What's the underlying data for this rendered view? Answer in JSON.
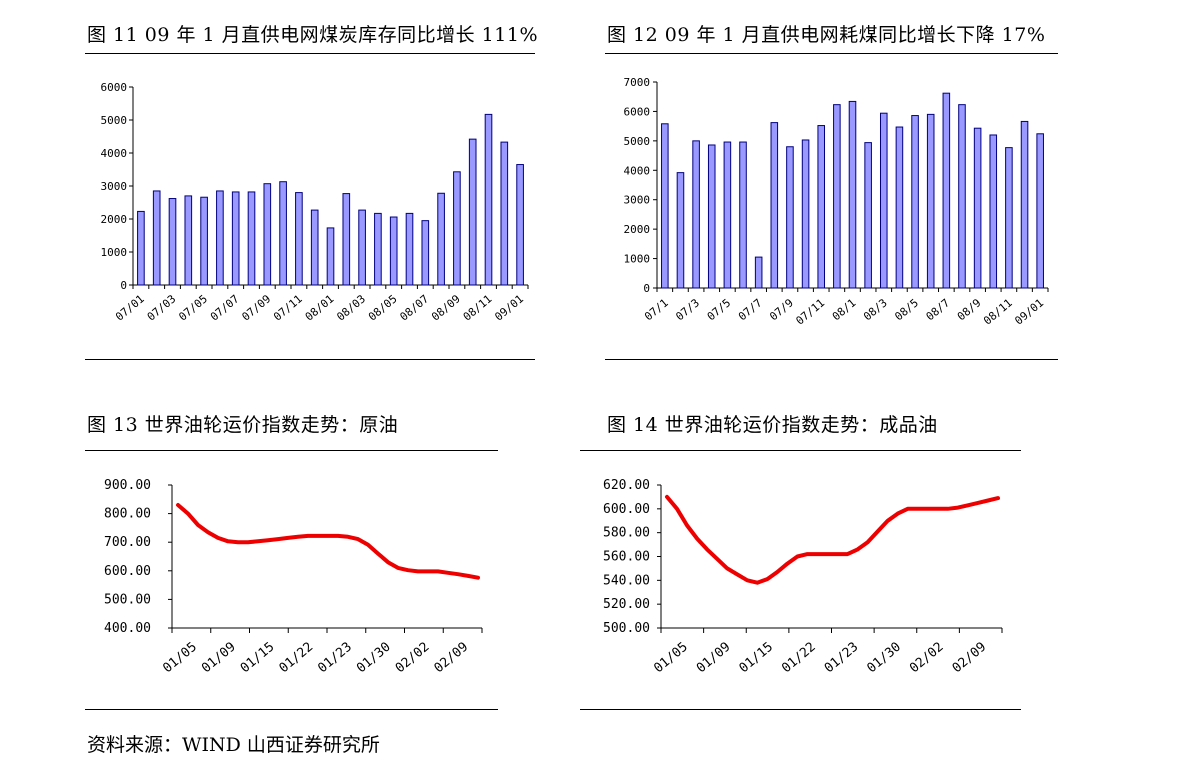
{
  "titles": {
    "fig11": "图 11 09 年 1 月直供电网煤炭库存同比增长 111%",
    "fig12": "图 12 09 年 1 月直供电网耗煤同比增长下降 17%",
    "fig13": "图 13 世界油轮运价指数走势：原油",
    "fig14": "图 14 世界油轮运价指数走势：成品油"
  },
  "source": "资料来源：WIND   山西证券研究所",
  "colors": {
    "bar_fill": "#9999ff",
    "bar_stroke": "#000080",
    "line": "#ee0000"
  },
  "chart_data": [
    {
      "id": "fig11",
      "type": "bar",
      "title": "图 11 09 年 1 月直供电网煤炭库存同比增长 111%",
      "ylim": [
        0,
        6000
      ],
      "yticks": [
        0,
        1000,
        2000,
        3000,
        4000,
        5000,
        6000
      ],
      "xtick_labels": [
        "07/01",
        "07/03",
        "07/05",
        "07/07",
        "07/09",
        "07/11",
        "08/01",
        "08/03",
        "08/05",
        "08/07",
        "08/09",
        "08/11",
        "09/01"
      ],
      "values": [
        2230,
        2850,
        2620,
        2700,
        2660,
        2850,
        2820,
        2820,
        3070,
        3130,
        2800,
        2270,
        1730,
        2770,
        2270,
        2170,
        2060,
        2170,
        1950,
        2780,
        3430,
        4420,
        5170,
        4330,
        3650
      ]
    },
    {
      "id": "fig12",
      "type": "bar",
      "title": "图 12 09 年 1 月直供电网耗煤同比增长下降 17%",
      "ylim": [
        0,
        7000
      ],
      "yticks": [
        0,
        1000,
        2000,
        3000,
        4000,
        5000,
        6000,
        7000
      ],
      "xtick_labels": [
        "07/1",
        "07/3",
        "07/5",
        "07/7",
        "07/9",
        "07/11",
        "08/1",
        "08/3",
        "08/5",
        "08/7",
        "08/9",
        "08/11",
        "09/01"
      ],
      "values": [
        5580,
        3920,
        5000,
        4860,
        4960,
        4960,
        1050,
        5620,
        4800,
        5030,
        5520,
        6230,
        6340,
        4940,
        5940,
        5470,
        5860,
        5900,
        6620,
        6230,
        5430,
        5200,
        4770,
        5660,
        5240
      ]
    },
    {
      "id": "fig13",
      "type": "line",
      "title": "图 13 世界油轮运价指数走势：原油",
      "ylim": [
        400,
        900
      ],
      "yticks": [
        "400.00",
        "500.00",
        "600.00",
        "700.00",
        "800.00",
        "900.00"
      ],
      "xtick_labels": [
        "01/05",
        "01/09",
        "01/15",
        "01/22",
        "01/23",
        "01/30",
        "02/02",
        "02/09"
      ],
      "values": [
        830,
        800,
        760,
        735,
        715,
        703,
        700,
        700,
        703,
        707,
        711,
        715,
        719,
        722,
        722,
        722,
        722,
        719,
        711,
        691,
        660,
        630,
        610,
        602,
        598,
        598,
        598,
        593,
        588,
        582,
        576
      ]
    },
    {
      "id": "fig14",
      "type": "line",
      "title": "图 14 世界油轮运价指数走势：成品油",
      "ylim": [
        500,
        620
      ],
      "yticks": [
        "500.00",
        "520.00",
        "540.00",
        "560.00",
        "580.00",
        "600.00",
        "620.00"
      ],
      "xtick_labels": [
        "01/05",
        "01/09",
        "01/15",
        "01/22",
        "01/23",
        "01/30",
        "02/02",
        "02/09"
      ],
      "values": [
        610,
        600,
        586,
        575,
        566,
        558,
        550,
        545,
        540,
        538,
        541,
        547,
        554,
        560,
        562,
        562,
        562,
        562,
        562,
        566,
        572,
        581,
        590,
        596,
        600,
        600,
        600,
        600,
        600,
        601,
        603,
        605,
        607,
        609
      ]
    }
  ]
}
